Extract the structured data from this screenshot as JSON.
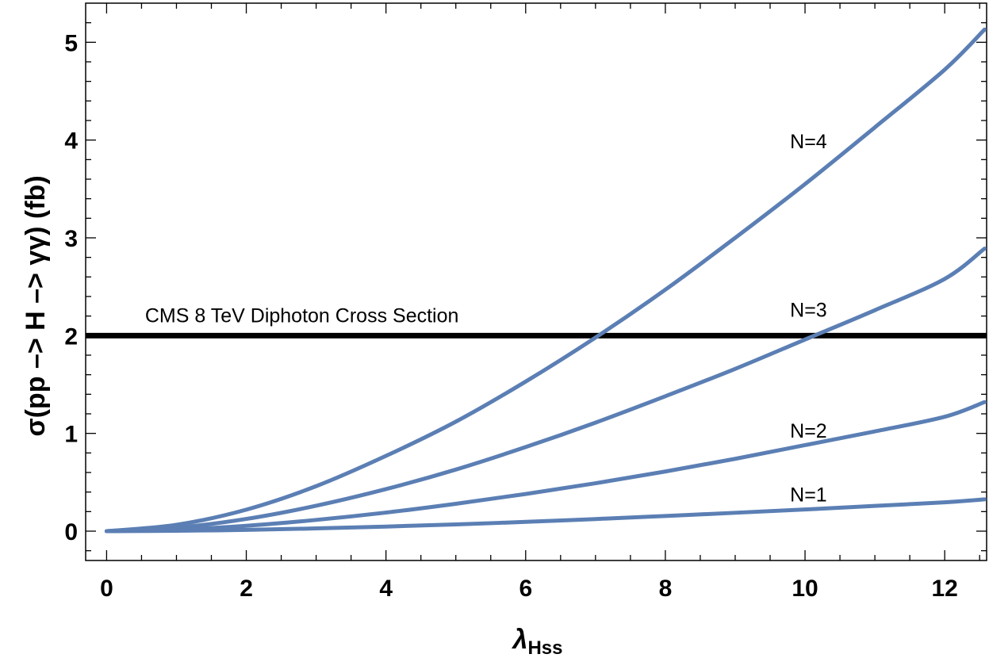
{
  "chart_data": {
    "type": "line",
    "title": "",
    "xlabel_main": "λ",
    "xlabel_sub": "Hss",
    "ylabel": "σ(pp –> H –> γγ) (fb)",
    "xlim": [
      -0.3,
      12.6
    ],
    "ylim": [
      -0.3,
      5.4
    ],
    "xticks": [
      0,
      2,
      4,
      6,
      8,
      10,
      12
    ],
    "yticks": [
      0,
      1,
      2,
      3,
      4,
      5
    ],
    "grid": false,
    "series_color": "#5b7fb4",
    "reference_line": {
      "y": 2.0,
      "label": "CMS 8 TeV Diphoton Cross Section",
      "color": "#000000"
    },
    "series": [
      {
        "name": "N=1",
        "x": [
          0,
          1,
          2,
          3,
          4,
          5,
          6,
          7,
          8,
          9,
          10,
          11,
          12,
          12.57
        ],
        "y": [
          0,
          0.004,
          0.013,
          0.028,
          0.047,
          0.069,
          0.095,
          0.124,
          0.155,
          0.188,
          0.222,
          0.258,
          0.295,
          0.325
        ]
      },
      {
        "name": "N=2",
        "x": [
          0,
          1,
          2,
          3,
          4,
          5,
          6,
          7,
          8,
          9,
          10,
          11,
          12,
          12.57
        ],
        "y": [
          0,
          0.015,
          0.055,
          0.115,
          0.19,
          0.28,
          0.38,
          0.49,
          0.61,
          0.74,
          0.88,
          1.02,
          1.17,
          1.32
        ]
      },
      {
        "name": "N=3",
        "x": [
          0,
          1,
          2,
          3,
          4,
          5,
          6,
          7,
          8,
          9,
          10,
          11,
          12,
          12.57
        ],
        "y": [
          0,
          0.035,
          0.125,
          0.26,
          0.43,
          0.63,
          0.86,
          1.11,
          1.38,
          1.66,
          1.96,
          2.26,
          2.58,
          2.89
        ]
      },
      {
        "name": "N=4",
        "x": [
          0,
          1,
          2,
          3,
          4,
          5,
          6,
          7,
          8,
          9,
          10,
          11,
          12,
          12.57
        ],
        "y": [
          0,
          0.065,
          0.22,
          0.46,
          0.77,
          1.12,
          1.53,
          1.98,
          2.47,
          3.0,
          3.55,
          4.13,
          4.72,
          5.13
        ]
      }
    ],
    "series_labels": [
      {
        "text": "N=1",
        "x": 10.05,
        "y": 0.37
      },
      {
        "text": "N=2",
        "x": 10.05,
        "y": 1.02
      },
      {
        "text": "N=3",
        "x": 10.05,
        "y": 2.26
      },
      {
        "text": "N=4",
        "x": 10.05,
        "y": 3.98
      }
    ],
    "reference_label_pos": {
      "x": 0.55,
      "y": 2.2
    }
  }
}
